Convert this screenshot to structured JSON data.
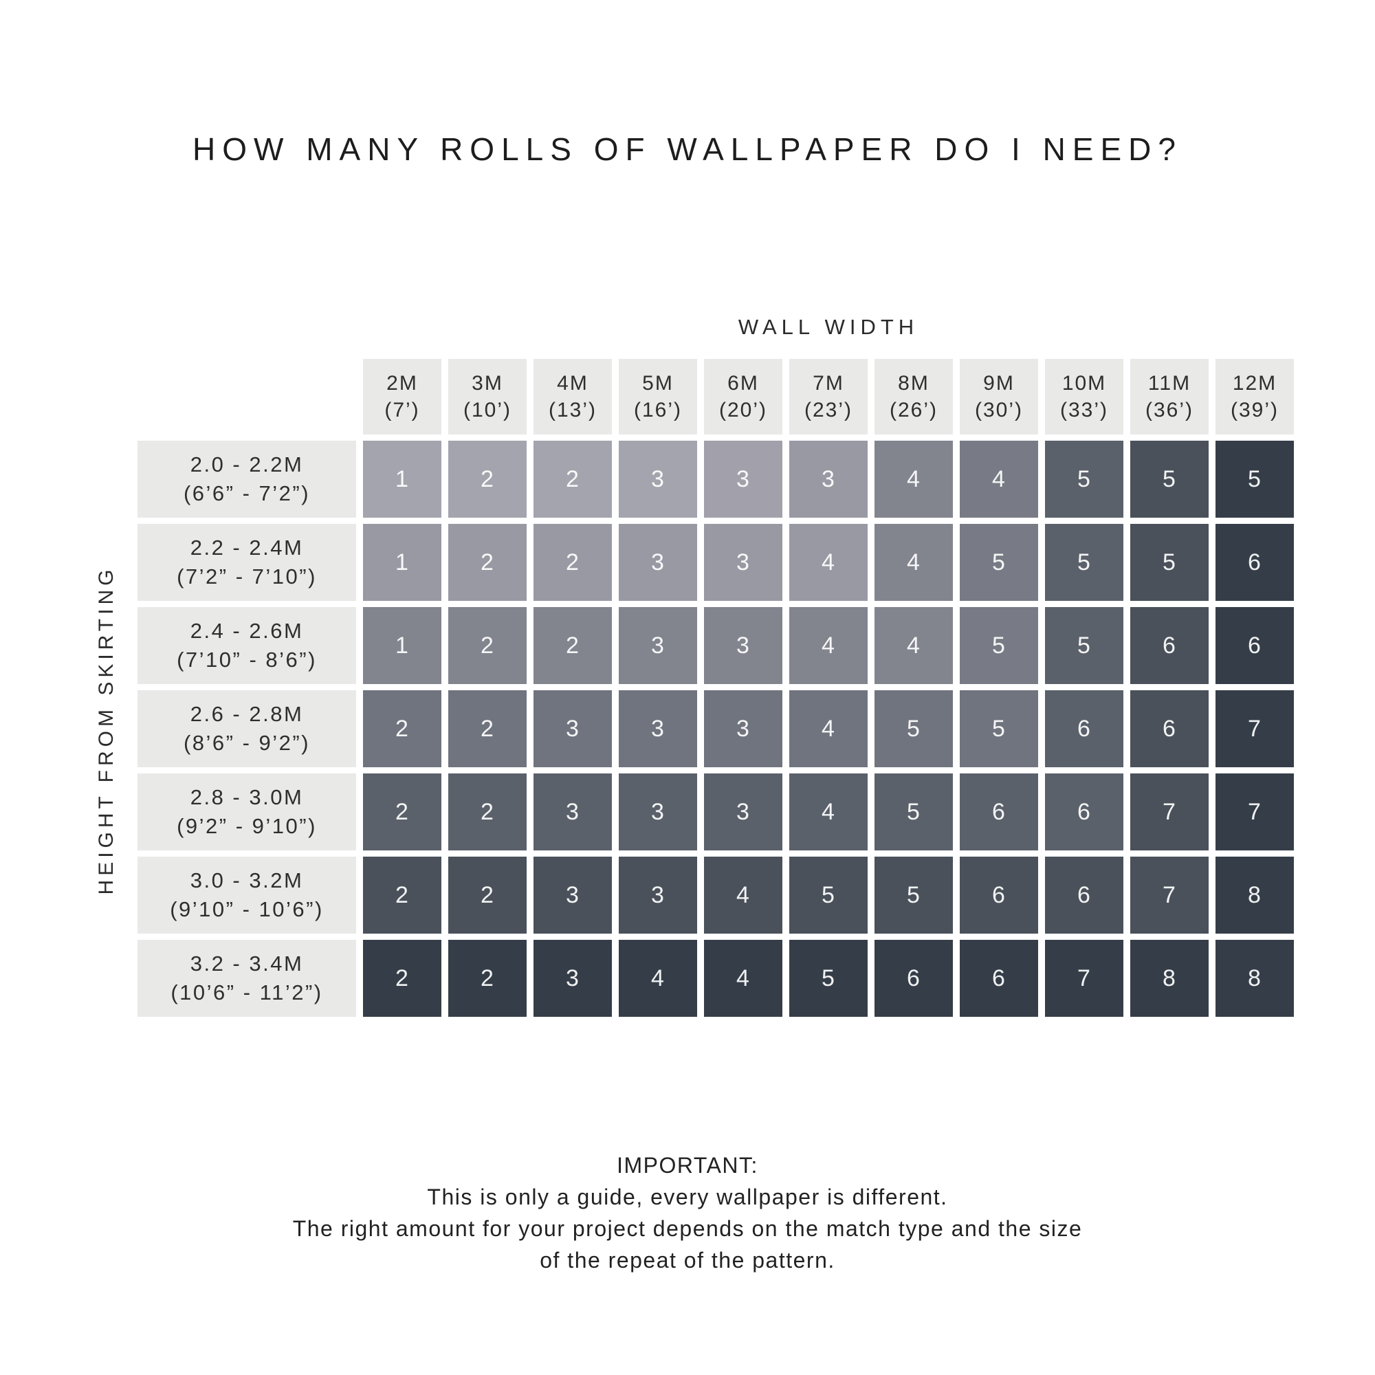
{
  "title": "HOW MANY ROLLS OF WALLPAPER DO I NEED?",
  "chart_data": {
    "type": "heatmap",
    "x_axis_label": "WALL WIDTH",
    "y_axis_label": "HEIGHT FROM SKIRTING",
    "columns": [
      {
        "metric": "2M",
        "imperial": "(7’)"
      },
      {
        "metric": "3M",
        "imperial": "(10’)"
      },
      {
        "metric": "4M",
        "imperial": "(13’)"
      },
      {
        "metric": "5M",
        "imperial": "(16’)"
      },
      {
        "metric": "6M",
        "imperial": "(20’)"
      },
      {
        "metric": "7M",
        "imperial": "(23’)"
      },
      {
        "metric": "8M",
        "imperial": "(26’)"
      },
      {
        "metric": "9M",
        "imperial": "(30’)"
      },
      {
        "metric": "10M",
        "imperial": "(33’)"
      },
      {
        "metric": "11M",
        "imperial": "(36’)"
      },
      {
        "metric": "12M",
        "imperial": "(39’)"
      }
    ],
    "rows": [
      {
        "metric": "2.0 - 2.2M",
        "imperial": "(6’6” - 7’2”)"
      },
      {
        "metric": "2.2 - 2.4M",
        "imperial": "(7’2” - 7’10”)"
      },
      {
        "metric": "2.4 - 2.6M",
        "imperial": "(7’10” - 8’6”)"
      },
      {
        "metric": "2.6 - 2.8M",
        "imperial": "(8’6” - 9’2”)"
      },
      {
        "metric": "2.8 - 3.0M",
        "imperial": "(9’2” - 9’10”)"
      },
      {
        "metric": "3.0 - 3.2M",
        "imperial": "(9’10” - 10’6”)"
      },
      {
        "metric": "3.2 - 3.4M",
        "imperial": "(10’6” - 11’2”)"
      }
    ],
    "values": [
      [
        1,
        2,
        2,
        3,
        3,
        3,
        4,
        4,
        5,
        5,
        5
      ],
      [
        1,
        2,
        2,
        3,
        3,
        4,
        4,
        5,
        5,
        5,
        6
      ],
      [
        1,
        2,
        2,
        3,
        3,
        4,
        4,
        5,
        5,
        6,
        6
      ],
      [
        2,
        2,
        3,
        3,
        3,
        4,
        5,
        5,
        6,
        6,
        7
      ],
      [
        2,
        2,
        3,
        3,
        3,
        4,
        5,
        6,
        6,
        7,
        7
      ],
      [
        2,
        2,
        3,
        3,
        4,
        5,
        5,
        6,
        6,
        7,
        8
      ],
      [
        2,
        2,
        3,
        4,
        4,
        5,
        6,
        6,
        7,
        8,
        8
      ]
    ],
    "cell_colors": [
      [
        "#A4A4AE",
        "#A4A4AE",
        "#A4A4AE",
        "#A4A4AE",
        "#A2A1AB",
        "#9899A3",
        "#82848E",
        "#787B85",
        "#5B616B",
        "#4A515B",
        "#353E48"
      ],
      [
        "#9899A3",
        "#9899A3",
        "#9899A3",
        "#9899A3",
        "#9899A3",
        "#9899A3",
        "#82848E",
        "#787B85",
        "#5B616B",
        "#4A515B",
        "#353E48"
      ],
      [
        "#82848E",
        "#82848E",
        "#82848E",
        "#82848E",
        "#82848E",
        "#82848E",
        "#82848E",
        "#787B85",
        "#5B616B",
        "#4A515B",
        "#353E48"
      ],
      [
        "#70747E",
        "#70747E",
        "#70747E",
        "#70747E",
        "#70747E",
        "#70747E",
        "#70747E",
        "#70747E",
        "#5B616B",
        "#4A515B",
        "#353E48"
      ],
      [
        "#5B616B",
        "#5B616B",
        "#5B616B",
        "#5B616B",
        "#5B616B",
        "#5B616B",
        "#5B616B",
        "#5B616B",
        "#5B616B",
        "#4A515B",
        "#353E48"
      ],
      [
        "#4A515B",
        "#4A515B",
        "#4A515B",
        "#4A515B",
        "#4A515B",
        "#4A515B",
        "#4A515B",
        "#4A515B",
        "#4A515B",
        "#4A515B",
        "#353E48"
      ],
      [
        "#353E48",
        "#353E48",
        "#353E48",
        "#353E48",
        "#353E48",
        "#353E48",
        "#353E48",
        "#353E48",
        "#353E48",
        "#353E48",
        "#353E48"
      ]
    ],
    "legend_position": "none",
    "grid_on": false
  },
  "palette": {
    "header_bg": "#E9E9E8",
    "row_label_bg": "#E9E9E8",
    "cell_text": "#FFFFFF",
    "lightest_cell": "#A4A4AE",
    "darkest_cell": "#353E48",
    "text": "#222222",
    "background": "#FFFFFF"
  },
  "footer": {
    "heading": "IMPORTANT:",
    "lines": [
      "This is only a guide, every wallpaper is different.",
      "The right amount for your project depends on the match type and the size",
      "of the repeat of the pattern."
    ]
  }
}
